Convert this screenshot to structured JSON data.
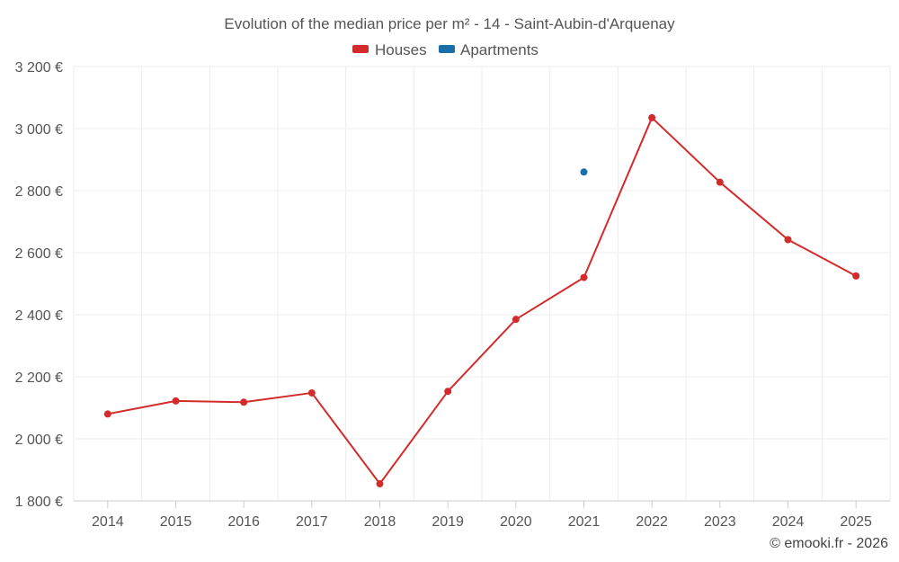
{
  "colors": {
    "houses": "#d32b2b",
    "apartments": "#1a6fa8",
    "text": "#555555",
    "grid": "#ececec"
  },
  "chart_data": {
    "type": "line",
    "title": "Evolution of the median price per m² - 14 - Saint-Aubin-d'Arquenay",
    "xlabel": "",
    "ylabel": "",
    "categories": [
      "2014",
      "2015",
      "2016",
      "2017",
      "2018",
      "2019",
      "2020",
      "2021",
      "2022",
      "2023",
      "2024",
      "2025"
    ],
    "ylim": [
      1800,
      3200
    ],
    "yticks": [
      1800,
      2000,
      2200,
      2400,
      2600,
      2800,
      3000,
      3200
    ],
    "ytick_labels": [
      "1 800 €",
      "2 000 €",
      "2 200 €",
      "2 400 €",
      "2 600 €",
      "2 800 €",
      "3 000 €",
      "3 200 €"
    ],
    "grid": true,
    "legend_position": "top-center",
    "series": [
      {
        "name": "Houses",
        "color": "#d32b2b",
        "values": [
          2080,
          2122,
          2118,
          2148,
          1855,
          2153,
          2385,
          2520,
          3035,
          2827,
          2642,
          2525
        ]
      },
      {
        "name": "Apartments",
        "color": "#1a6fa8",
        "values": [
          null,
          null,
          null,
          null,
          null,
          null,
          null,
          2860,
          null,
          null,
          null,
          null
        ]
      }
    ]
  },
  "credit": "© emooki.fr - 2026"
}
